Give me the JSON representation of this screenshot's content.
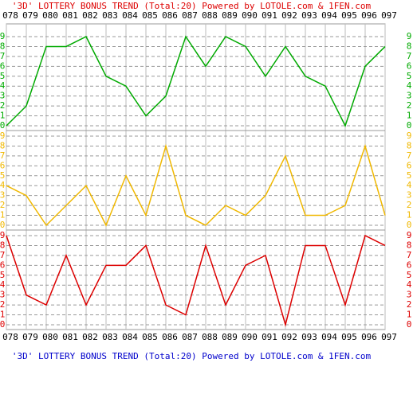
{
  "chart_data": {
    "type": "line",
    "title": "'3D' LOTTERY BONUS TREND (Total:20)  Powered by LOTOLE.com & 1FEN.com",
    "categories": [
      "078",
      "079",
      "080",
      "081",
      "082",
      "083",
      "084",
      "085",
      "086",
      "087",
      "088",
      "089",
      "090",
      "091",
      "092",
      "093",
      "094",
      "095",
      "096",
      "097"
    ],
    "ylim": [
      0,
      9
    ],
    "yticks": [
      0,
      1,
      2,
      3,
      4,
      5,
      6,
      7,
      8,
      9
    ],
    "grid": true,
    "series": [
      {
        "color": "#00aa00",
        "values": [
          0,
          2,
          8,
          8,
          9,
          5,
          4,
          1,
          3,
          9,
          6,
          9,
          8,
          5,
          8,
          5,
          4,
          0,
          6,
          8
        ]
      },
      {
        "color": "#f0b800",
        "values": [
          4,
          3,
          0,
          2,
          4,
          0,
          5,
          1,
          8,
          1,
          0,
          2,
          1,
          3,
          7,
          1,
          1,
          2,
          8,
          1
        ]
      },
      {
        "color": "#dd0000",
        "values": [
          9,
          3,
          2,
          7,
          2,
          6,
          6,
          8,
          2,
          1,
          8,
          2,
          6,
          7,
          0,
          8,
          8,
          2,
          9,
          8
        ]
      }
    ]
  }
}
